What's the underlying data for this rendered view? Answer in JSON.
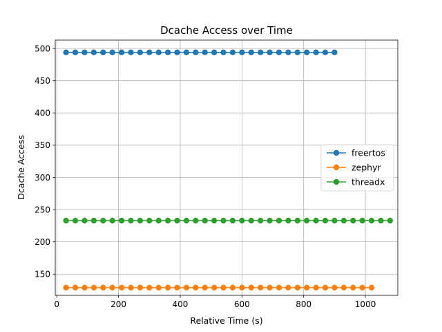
{
  "chart_data": {
    "type": "line",
    "title": "Dcache Access over Time",
    "xlabel": "Relative Time (s)",
    "ylabel": "Dcache Access",
    "xlim": [
      -5,
      1105
    ],
    "ylim": [
      117,
      513
    ],
    "xticks": [
      0,
      200,
      400,
      600,
      800,
      1000
    ],
    "yticks": [
      150,
      200,
      250,
      300,
      350,
      400,
      450,
      500
    ],
    "grid": true,
    "legend_position": "center-right",
    "series": [
      {
        "name": "freertos",
        "color": "#1f77b4",
        "x": [
          30,
          60,
          90,
          120,
          150,
          180,
          210,
          240,
          270,
          300,
          330,
          360,
          390,
          420,
          450,
          480,
          510,
          540,
          570,
          600,
          630,
          660,
          690,
          720,
          750,
          780,
          810,
          840,
          870,
          900
        ],
        "y": [
          494,
          494,
          494,
          494,
          494,
          494,
          494,
          494,
          494,
          494,
          494,
          494,
          494,
          494,
          494,
          494,
          494,
          494,
          494,
          494,
          494,
          494,
          494,
          494,
          494,
          494,
          494,
          494,
          494,
          494
        ]
      },
      {
        "name": "zephyr",
        "color": "#ff7f0e",
        "x": [
          30,
          60,
          90,
          120,
          150,
          180,
          210,
          240,
          270,
          300,
          330,
          360,
          390,
          420,
          450,
          480,
          510,
          540,
          570,
          600,
          630,
          660,
          690,
          720,
          750,
          780,
          810,
          840,
          870,
          900,
          930,
          960,
          990,
          1020
        ],
        "y": [
          129,
          129,
          129,
          129,
          129,
          129,
          129,
          129,
          129,
          129,
          129,
          129,
          129,
          129,
          129,
          129,
          129,
          129,
          129,
          129,
          129,
          129,
          129,
          129,
          129,
          129,
          129,
          129,
          129,
          129,
          129,
          129,
          129,
          129
        ]
      },
      {
        "name": "threadx",
        "color": "#2ca02c",
        "x": [
          30,
          60,
          90,
          120,
          150,
          180,
          210,
          240,
          270,
          300,
          330,
          360,
          390,
          420,
          450,
          480,
          510,
          540,
          570,
          600,
          630,
          660,
          690,
          720,
          750,
          780,
          810,
          840,
          870,
          900,
          930,
          960,
          990,
          1020,
          1050,
          1080
        ],
        "y": [
          233,
          233,
          233,
          233,
          233,
          233,
          233,
          233,
          233,
          233,
          233,
          233,
          233,
          233,
          233,
          233,
          233,
          233,
          233,
          233,
          233,
          233,
          233,
          233,
          233,
          233,
          233,
          233,
          233,
          233,
          233,
          233,
          233,
          233,
          233,
          233
        ]
      }
    ]
  }
}
